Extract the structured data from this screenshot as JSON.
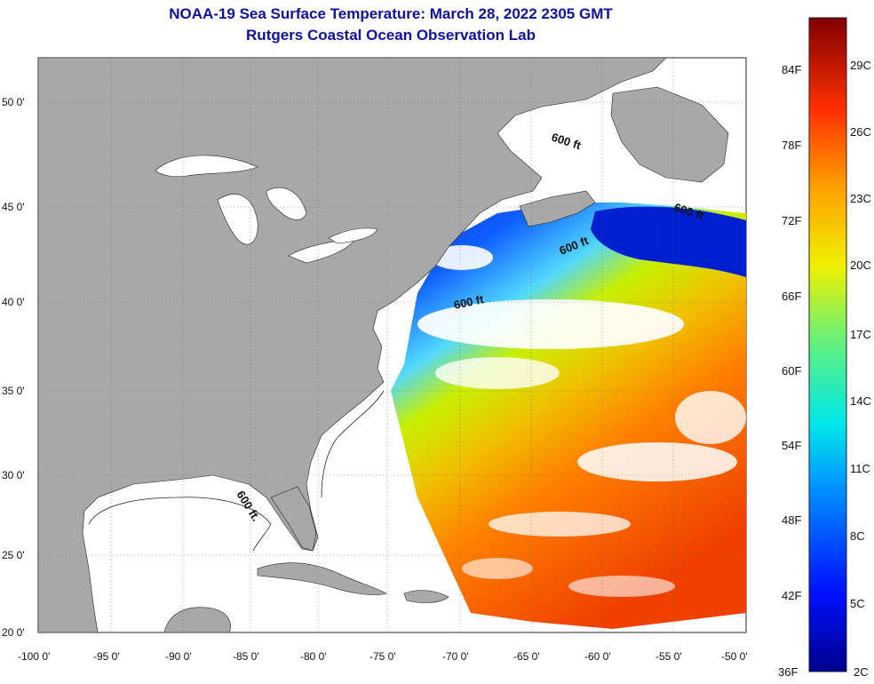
{
  "title": "NOAA-19 Sea Surface Temperature:  March 28, 2022 2305 GMT",
  "subtitle": "Rutgers Coastal Ocean Observation Lab",
  "lat_ticks": [
    "50 0'",
    "45 0'",
    "40 0'",
    "35 0'",
    "30 0'",
    "25 0'",
    "20 0'"
  ],
  "lon_ticks": [
    "-100 0'",
    "-95 0'",
    "-90 0'",
    "-85 0'",
    "-80 0'",
    "-75 0'",
    "-70 0'",
    "-65 0'",
    "-60 0'",
    "-55 0'",
    "-50 0'"
  ],
  "contour_labels": [
    "600 ft",
    "600 ft",
    "600 ft",
    "600 ft",
    "600 ft."
  ],
  "colorbar": {
    "fahrenheit": [
      "84F",
      "78F",
      "72F",
      "66F",
      "60F",
      "54F",
      "48F",
      "42F",
      "36F"
    ],
    "celsius": [
      "29C",
      "26C",
      "23C",
      "20C",
      "17C",
      "14C",
      "11C",
      "8C",
      "5C",
      "2C"
    ]
  },
  "colors": {
    "land": "#a8a8a8",
    "cloud_or_nodata": "#ffffff",
    "title": "#1010a0"
  }
}
